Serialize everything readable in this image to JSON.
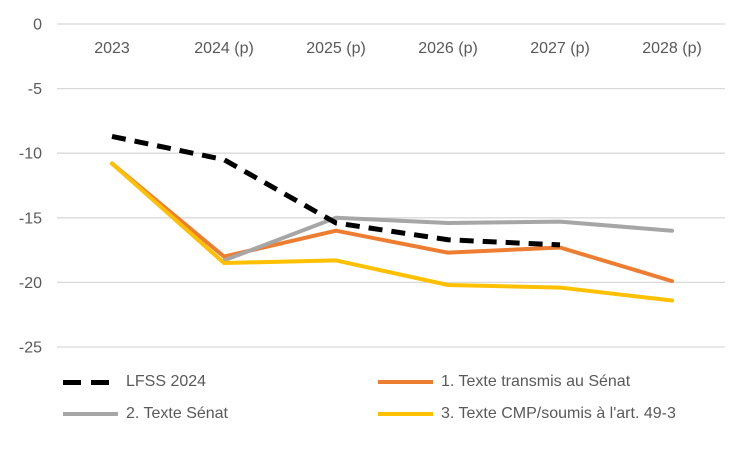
{
  "chart_data": {
    "type": "line",
    "title": "",
    "xlabel": "",
    "ylabel": "",
    "categories": [
      "2023",
      "2024 (p)",
      "2025 (p)",
      "2026 (p)",
      "2027 (p)",
      "2028 (p)"
    ],
    "series": [
      {
        "name": "LFSS 2024",
        "color": "#000000",
        "dashed": true,
        "values": [
          -8.7,
          -10.5,
          -15.4,
          -16.7,
          -17.1,
          null
        ]
      },
      {
        "name": "1. Texte transmis au Sénat",
        "color": "#ED7D31",
        "dashed": false,
        "values": [
          -10.8,
          -18.0,
          -16.0,
          -17.7,
          -17.3,
          -19.9
        ]
      },
      {
        "name": "2. Texte Sénat",
        "color": "#A6A6A6",
        "dashed": false,
        "values": [
          null,
          -18.3,
          -15.0,
          -15.4,
          -15.3,
          -16.0
        ]
      },
      {
        "name": "3. Texte CMP/soumis à l'art. 49-3",
        "color": "#FFC000",
        "dashed": false,
        "values": [
          -10.8,
          -18.5,
          -18.3,
          -20.2,
          -20.4,
          -21.4
        ]
      }
    ],
    "ylim": [
      -25,
      0
    ],
    "yticks": [
      0,
      -5,
      -10,
      -15,
      -20,
      -25
    ],
    "ytick_labels": [
      "0",
      "-5",
      "-10",
      "-15",
      "-20",
      "-25"
    ],
    "grid": "horizontal",
    "gridline_color": "#D9D9D9",
    "text_color": "#595959",
    "legend_position": "bottom"
  }
}
